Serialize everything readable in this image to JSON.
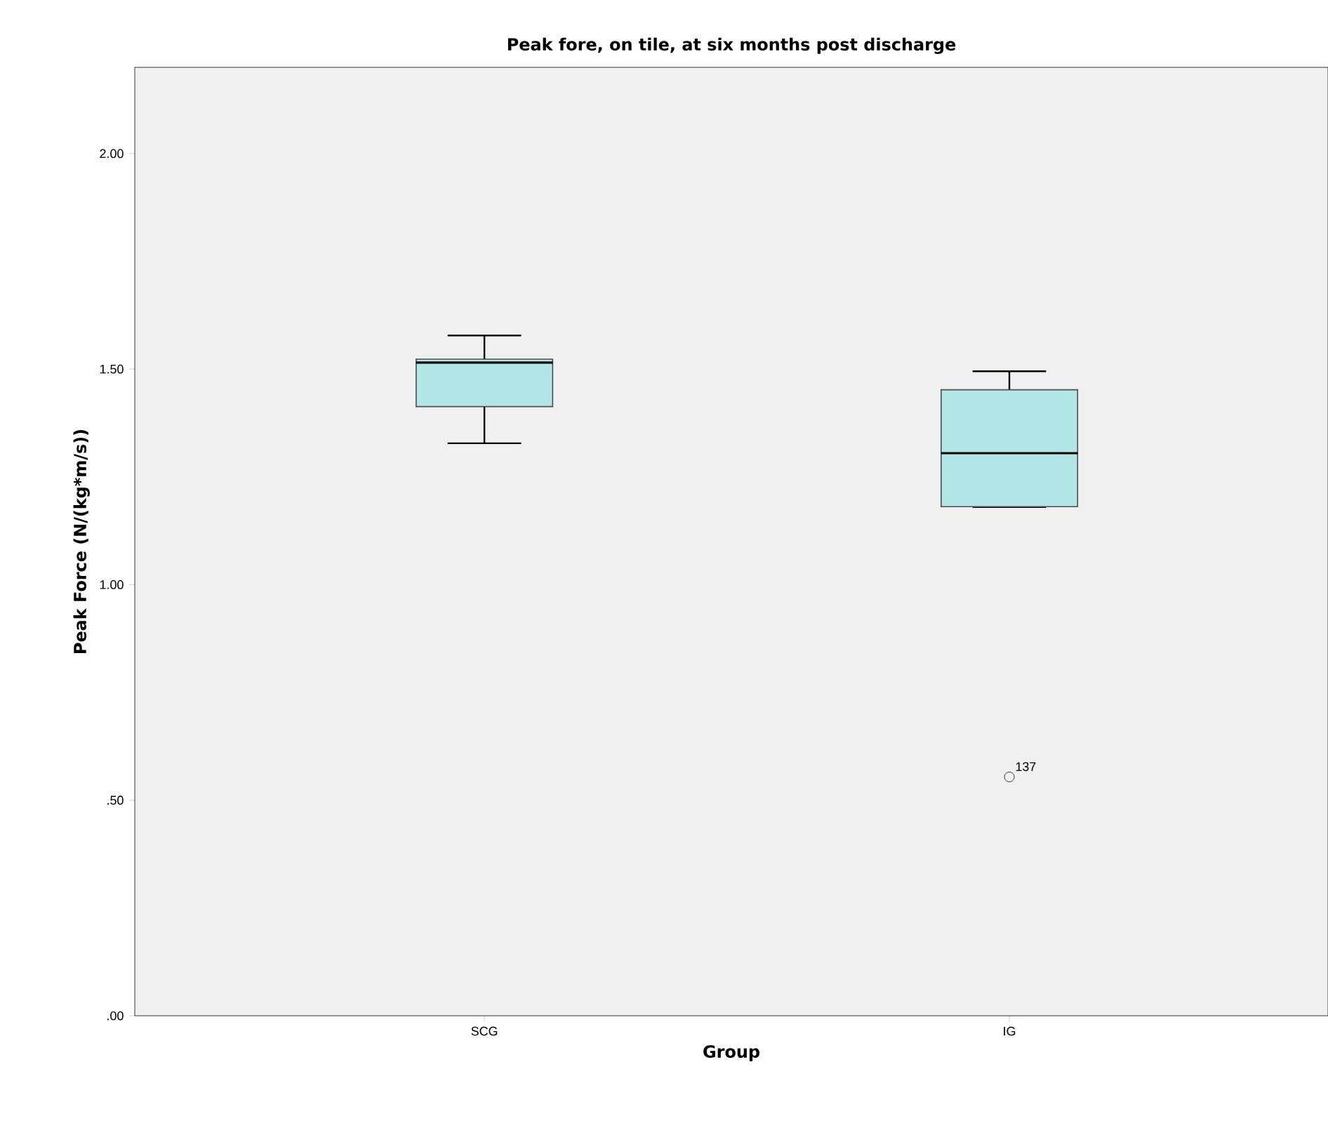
{
  "chart_data": {
    "type": "box",
    "title": "Peak fore, on tile, at six months post discharge",
    "xlabel": "Group",
    "ylabel": "Peak Force (N/(kg*m/s))",
    "categories": [
      "SCG",
      "IG"
    ],
    "boxes": [
      {
        "low": 1.328,
        "q1": 1.413,
        "median": 1.515,
        "q3": 1.523,
        "high": 1.578
      },
      {
        "low": 1.18,
        "q1": 1.181,
        "median": 1.305,
        "q3": 1.452,
        "high": 1.495,
        "outliers": [
          0.554
        ]
      }
    ],
    "color": "#b3e6e6",
    "ylim": [
      0,
      2.2
    ],
    "yticks": [
      {
        "value": 0,
        "label": ".00"
      },
      {
        "value": 0.5,
        "label": ".50"
      },
      {
        "value": 1.0,
        "label": "1.00"
      },
      {
        "value": 1.5,
        "label": "1.50"
      },
      {
        "value": 2.0,
        "label": "2.00"
      }
    ],
    "annotations": [
      "137"
    ],
    "grid": false
  }
}
